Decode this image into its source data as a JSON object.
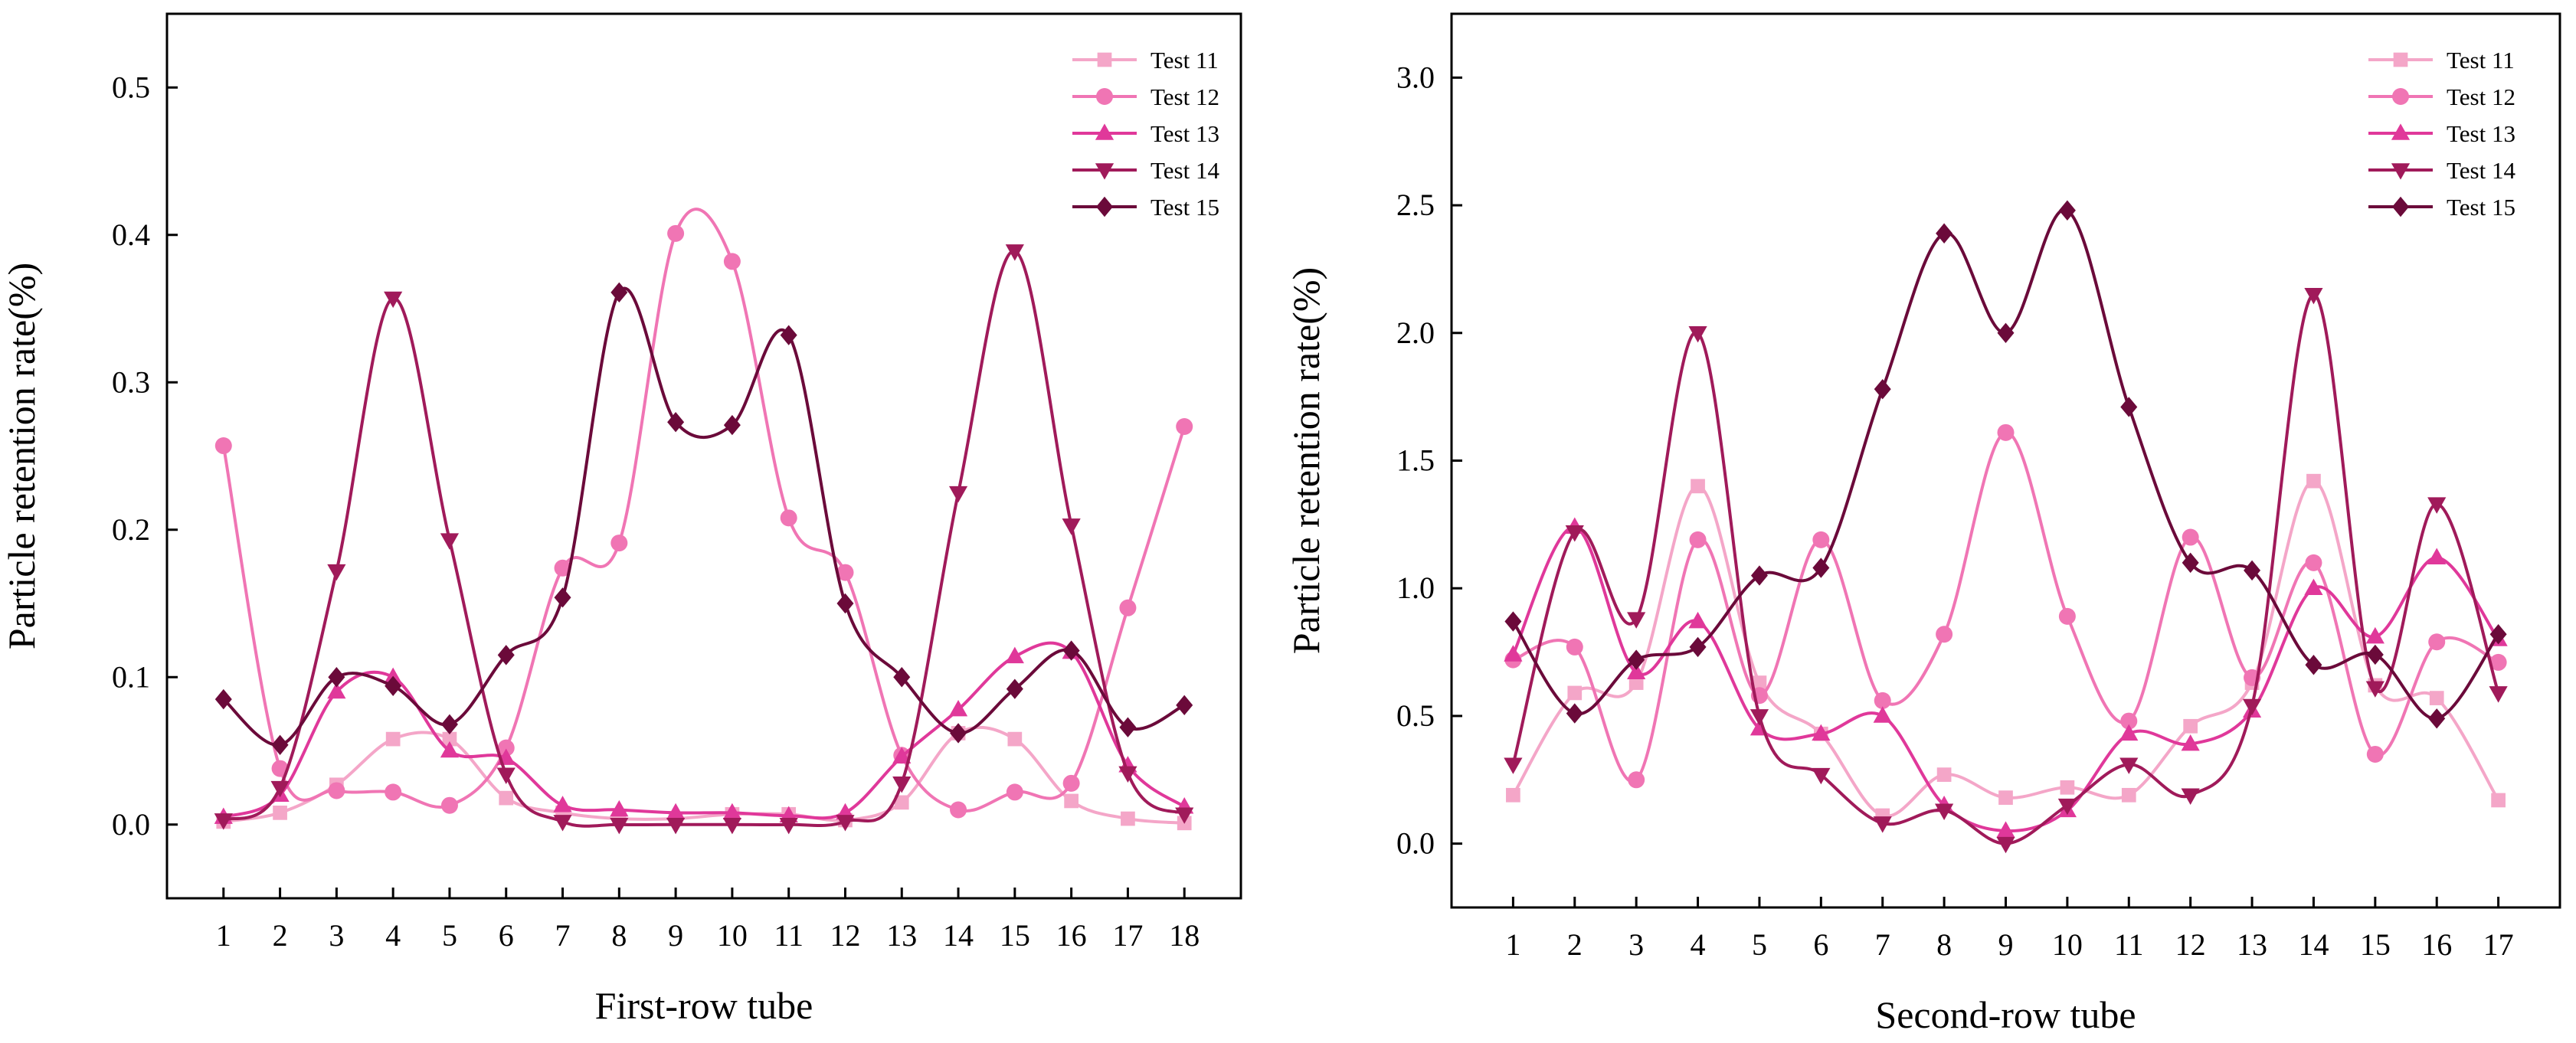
{
  "chart_data": [
    {
      "type": "line",
      "id": "first-row",
      "xlabel": "First-row tube",
      "ylabel": "Particle retention rate(%)",
      "x": [
        1,
        2,
        3,
        4,
        5,
        6,
        7,
        8,
        9,
        10,
        11,
        12,
        13,
        14,
        15,
        16,
        17,
        18
      ],
      "ylim": [
        -0.05,
        0.55
      ],
      "yticks": [
        "0.0",
        "0.1",
        "0.2",
        "0.3",
        "0.4",
        "0.5"
      ],
      "legend_position": "top-right",
      "series": [
        {
          "name": "Test 11",
          "marker": "square",
          "color": "#F4A6C8",
          "values": [
            0.002,
            0.008,
            0.027,
            0.058,
            0.058,
            0.018,
            0.008,
            0.004,
            0.004,
            0.007,
            0.007,
            0.003,
            0.015,
            0.062,
            0.058,
            0.016,
            0.004,
            0.001
          ]
        },
        {
          "name": "Test 12",
          "marker": "circle",
          "color": "#F075B4",
          "values": [
            0.257,
            0.038,
            0.023,
            0.022,
            0.013,
            0.052,
            0.174,
            0.191,
            0.401,
            0.382,
            0.208,
            0.171,
            0.047,
            0.01,
            0.022,
            0.028,
            0.147,
            0.27
          ]
        },
        {
          "name": "Test 13",
          "marker": "triangle-up",
          "color": "#E0389A",
          "values": [
            0.005,
            0.02,
            0.09,
            0.1,
            0.05,
            0.045,
            0.013,
            0.01,
            0.008,
            0.008,
            0.006,
            0.008,
            0.046,
            0.078,
            0.114,
            0.117,
            0.04,
            0.012
          ]
        },
        {
          "name": "Test 14",
          "marker": "triangle-down",
          "color": "#A01A5A",
          "values": [
            0.003,
            0.025,
            0.172,
            0.357,
            0.193,
            0.034,
            0.002,
            0.0,
            0.0,
            0.0,
            0.0,
            0.002,
            0.028,
            0.225,
            0.389,
            0.203,
            0.035,
            0.007
          ]
        },
        {
          "name": "Test 15",
          "marker": "diamond",
          "color": "#6B0A3A",
          "values": [
            0.085,
            0.054,
            0.1,
            0.094,
            0.068,
            0.115,
            0.154,
            0.361,
            0.273,
            0.271,
            0.332,
            0.15,
            0.1,
            0.062,
            0.092,
            0.118,
            0.066,
            0.081
          ]
        }
      ]
    },
    {
      "type": "line",
      "id": "second-row",
      "xlabel": "Second-row tube",
      "ylabel": "Particle retention rate(%)",
      "x": [
        1,
        2,
        3,
        4,
        5,
        6,
        7,
        8,
        9,
        10,
        11,
        12,
        13,
        14,
        15,
        16,
        17
      ],
      "ylim": [
        -0.25,
        3.25
      ],
      "yticks": [
        "0.0",
        "0.5",
        "1.0",
        "1.5",
        "2.0",
        "2.5",
        "3.0"
      ],
      "legend_position": "top-right",
      "series": [
        {
          "name": "Test 11",
          "marker": "square",
          "color": "#F4A6C8",
          "values": [
            0.19,
            0.59,
            0.63,
            1.4,
            0.63,
            0.43,
            0.11,
            0.27,
            0.18,
            0.22,
            0.19,
            0.46,
            0.63,
            1.42,
            0.62,
            0.57,
            0.17
          ]
        },
        {
          "name": "Test 12",
          "marker": "circle",
          "color": "#F075B4",
          "values": [
            0.72,
            0.77,
            0.25,
            1.19,
            0.58,
            1.19,
            0.56,
            0.82,
            1.61,
            0.89,
            0.48,
            1.2,
            0.65,
            1.1,
            0.35,
            0.79,
            0.71
          ]
        },
        {
          "name": "Test 13",
          "marker": "triangle-up",
          "color": "#E0389A",
          "values": [
            0.74,
            1.24,
            0.67,
            0.87,
            0.45,
            0.43,
            0.5,
            0.15,
            0.05,
            0.13,
            0.43,
            0.39,
            0.52,
            1.0,
            0.81,
            1.12,
            0.8
          ]
        },
        {
          "name": "Test 14",
          "marker": "triangle-down",
          "color": "#A01A5A",
          "values": [
            0.31,
            1.22,
            0.88,
            2.0,
            0.5,
            0.27,
            0.08,
            0.13,
            0.0,
            0.15,
            0.31,
            0.19,
            0.54,
            2.15,
            0.61,
            1.33,
            0.59
          ]
        },
        {
          "name": "Test 15",
          "marker": "diamond",
          "color": "#6B0A3A",
          "values": [
            0.87,
            0.51,
            0.72,
            0.77,
            1.05,
            1.08,
            1.78,
            2.39,
            2.0,
            2.48,
            1.71,
            1.1,
            1.07,
            0.7,
            0.74,
            0.49,
            0.82
          ]
        }
      ]
    }
  ]
}
